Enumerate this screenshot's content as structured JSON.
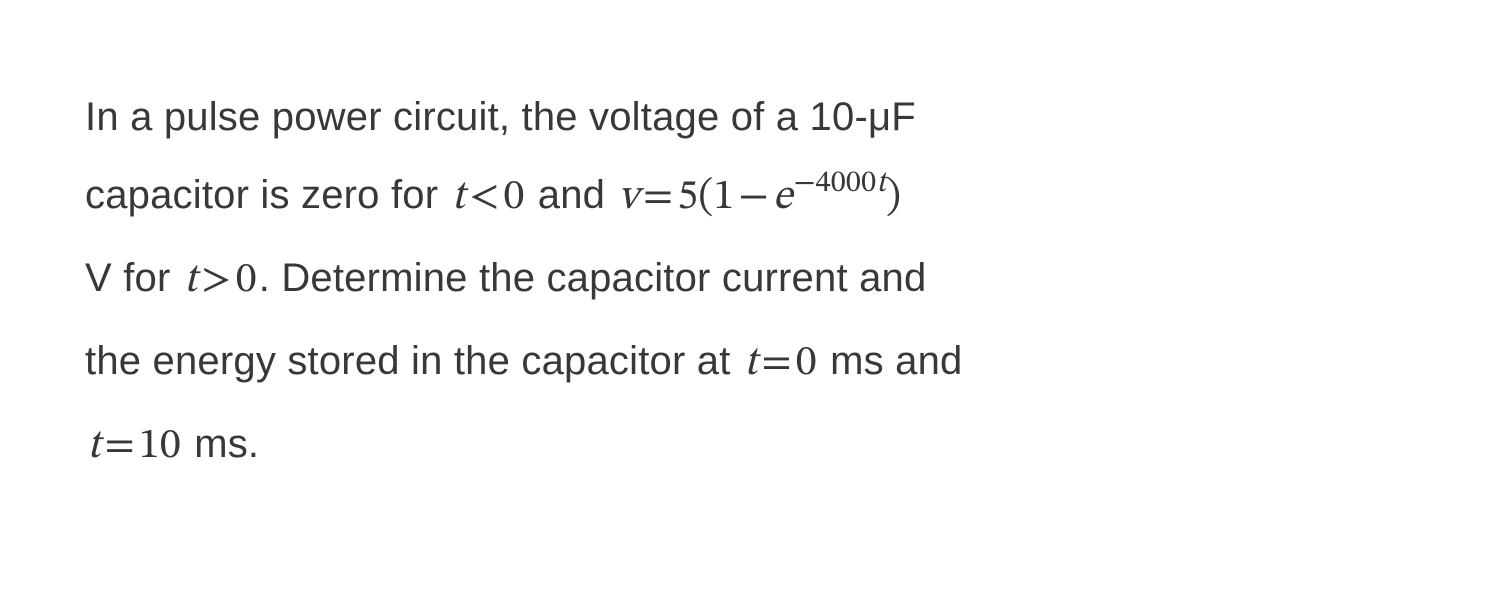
{
  "problem": {
    "text_color": "#383838",
    "background_color": "#ffffff",
    "body_font_size_pt": 30,
    "math_font_size_pt": 32,
    "line_height": 1.95,
    "parts": {
      "p1": "In a pulse power circuit, the voltage of a 10-μF",
      "p2a": "capacitor is zero for ",
      "p2b": " and ",
      "p3a": "V for ",
      "p3b": ". Determine the capacitor current and",
      "p4a": "the energy stored in the capacitor at ",
      "p4b": " ms and",
      "p5b": " ms."
    },
    "math": {
      "t_lt_0_var": "t",
      "t_lt_0_op": "<",
      "t_lt_0_rhs": "0",
      "v_eq_var": "v",
      "v_eq_op": "=",
      "v_eq_coef": "5",
      "v_eq_lp": "(",
      "v_eq_one": "1",
      "v_eq_minus": "−",
      "v_eq_e": "e",
      "v_eq_exp_sign": "−",
      "v_eq_exp_num": "4000",
      "v_eq_exp_var": "t",
      "v_eq_rp": ")",
      "t_gt_0_var": "t",
      "t_gt_0_op": ">",
      "t_gt_0_rhs": "0",
      "t_eq_0_var": "t",
      "t_eq_0_op": "=",
      "t_eq_0_rhs": "0",
      "t_eq_10_var": "t",
      "t_eq_10_op": "=",
      "t_eq_10_rhs": "10"
    }
  }
}
